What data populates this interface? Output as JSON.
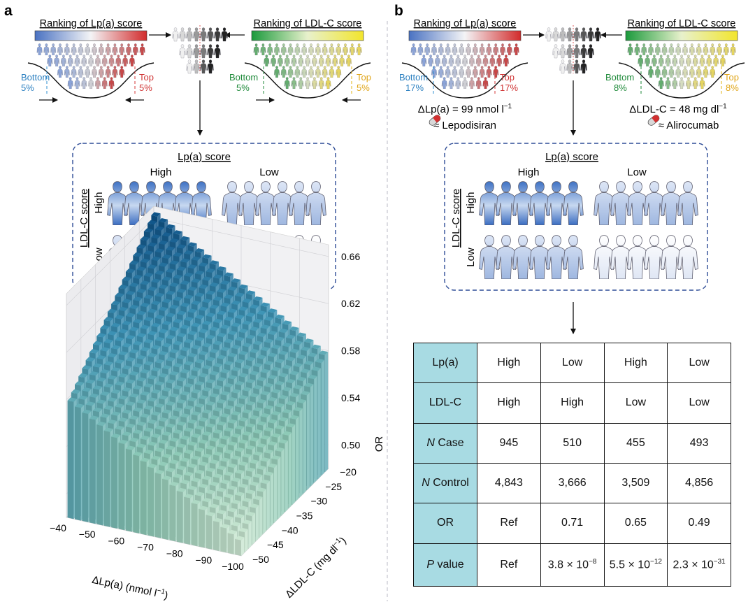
{
  "panels": {
    "a": {
      "label": "a",
      "rank_lp": "Ranking of Lp(a) score",
      "rank_ldl": "Ranking of LDL-C score",
      "lp_bottom": "Bottom",
      "lp_bottom_pct": "5%",
      "lp_top": "Top",
      "lp_top_pct": "5%",
      "ldl_bottom": "Bottom",
      "ldl_bottom_pct": "5%",
      "ldl_top": "Top",
      "ldl_top_pct": "5%",
      "box_title": "Lp(a) score",
      "col_high": "High",
      "col_low": "Low",
      "row_title": "LDL-C score",
      "row_high": "High",
      "row_low": "Low"
    },
    "b": {
      "label": "b",
      "rank_lp": "Ranking of Lp(a) score",
      "rank_ldl": "Ranking of LDL-C score",
      "lp_bottom": "Bottom",
      "lp_bottom_pct": "17%",
      "lp_top": "Top",
      "lp_top_pct": "17%",
      "ldl_bottom": "Bottom",
      "ldl_bottom_pct": "8%",
      "ldl_top": "Top",
      "ldl_top_pct": "8%",
      "delta_lp": "ΔLp(a) = 99 nmol l",
      "delta_lp_sup": "−1",
      "drug_lp": "≈ Lepodisiran",
      "delta_ldl": "ΔLDL-C = 48 mg dl",
      "delta_ldl_sup": "−1",
      "drug_ldl": "≈ Alirocumab",
      "box_title": "Lp(a) score",
      "col_high": "High",
      "col_low": "Low",
      "row_title": "LDL-C score",
      "row_high": "High",
      "row_low": "Low"
    }
  },
  "table": {
    "rows": [
      {
        "label": "Lp(a)",
        "label_italic": "",
        "cells": [
          "High",
          "Low",
          "High",
          "Low"
        ]
      },
      {
        "label": "LDL-C",
        "label_italic": "",
        "cells": [
          "High",
          "High",
          "Low",
          "Low"
        ]
      },
      {
        "label": "Case",
        "label_italic": "N",
        "cells": [
          "945",
          "510",
          "455",
          "493"
        ]
      },
      {
        "label": "Control",
        "label_italic": "N",
        "cells": [
          "4,843",
          "3,666",
          "3,509",
          "4,856"
        ]
      },
      {
        "label": "OR",
        "label_italic": "",
        "cells": [
          "Ref",
          "0.71",
          "0.65",
          "0.49"
        ]
      },
      {
        "label": "value",
        "label_italic": "P",
        "cells": [
          "Ref",
          "3.8 × 10",
          "5.5 × 10",
          "2.3 × 10"
        ],
        "cell_sups": [
          "",
          "−8",
          "−12",
          "−31"
        ]
      }
    ]
  },
  "chart_data": {
    "type": "3d-bar",
    "x_axis": {
      "label": "ΔLp(a) (nmol l",
      "label_sup": "−1",
      "label_end": ")",
      "ticks": [
        -40,
        -50,
        -60,
        -70,
        -80,
        -90,
        -100
      ]
    },
    "y_axis": {
      "label": "ΔLDL-C (mg dl",
      "label_sup": "−1",
      "label_end": ")",
      "ticks": [
        -20,
        -25,
        -30,
        -35,
        -40,
        -45,
        -50
      ]
    },
    "z_axis": {
      "label": "OR",
      "ticks": [
        "0.50",
        "0.54",
        "0.58",
        "0.62",
        "0.66"
      ]
    },
    "xlim": [
      -40,
      -100
    ],
    "ylim": [
      -20,
      -50
    ],
    "zlim": [
      0.48,
      0.67
    ],
    "surface": {
      "or_at_min_change": 0.49,
      "or_at_max_change": 0.67
    },
    "colormap": [
      "#dcefd9",
      "#8cc9b6",
      "#3e94b6",
      "#0b4e85"
    ]
  }
}
